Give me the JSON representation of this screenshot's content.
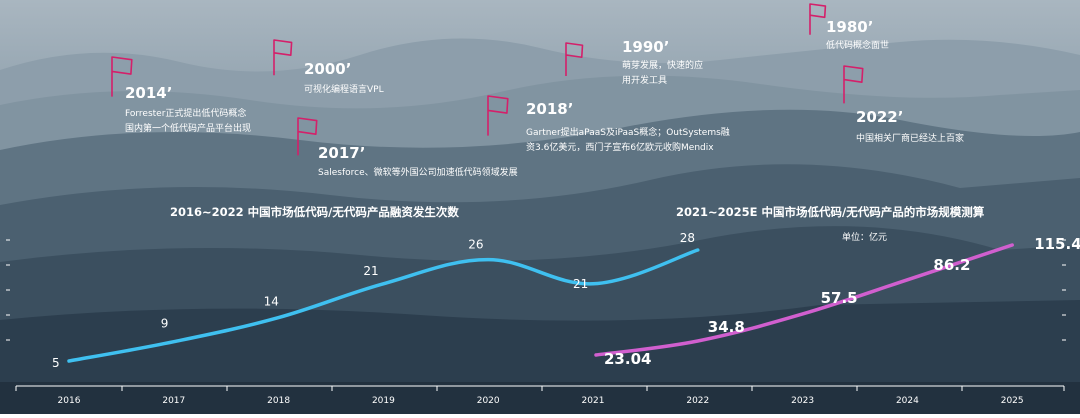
{
  "milestones": [
    {
      "year": "2014’",
      "lines": [
        "Forrester正式提出低代码概念",
        "国内第一个低代码产品平台出现"
      ]
    },
    {
      "year": "2000’",
      "lines": [
        "可视化编程语言VPL"
      ]
    },
    {
      "year": "2017’",
      "lines": [
        "Salesforce、微软等外国公司加速低代码领域发展"
      ]
    },
    {
      "year": "2018’",
      "lines": [
        "Gartner提出aPaaS及iPaaS概念；OutSystems融",
        "资3.6亿美元，西门子宣布6亿欧元收购Mendix"
      ]
    },
    {
      "year": "1990’",
      "lines": [
        "萌芽发展，快速的应",
        "用开发工具"
      ]
    },
    {
      "year": "1980’",
      "lines": [
        "低代码概念面世"
      ]
    },
    {
      "year": "2022’",
      "lines": [
        "中国相关厂商已经达上百家"
      ]
    }
  ],
  "colors": {
    "flag": "#d4206a",
    "series_financing": "#3fc0f0",
    "series_market": "#d15fcf",
    "axis": "#ffffff"
  },
  "chart_data": [
    {
      "type": "line",
      "title": "2016~2022 中国市场低代码/无代码产品融资发生次数",
      "x": [
        "2016",
        "2017",
        "2018",
        "2019",
        "2020",
        "2021",
        "2022"
      ],
      "values": [
        5,
        9,
        14,
        21,
        26,
        21,
        28
      ],
      "xlabel": "",
      "ylabel": ""
    },
    {
      "type": "line",
      "title": "2021~2025E 中国市场低代码/无代码产品的市场规模测算",
      "subtitle": "单位：亿元",
      "x": [
        "2021",
        "2022",
        "2023",
        "2024",
        "2025"
      ],
      "values": [
        23.04,
        34.8,
        57.5,
        86.2,
        115.4
      ],
      "xlabel": "",
      "ylabel": ""
    }
  ],
  "x_axis_ticks": [
    "2016",
    "2017",
    "2018",
    "2019",
    "2020",
    "2021",
    "2022",
    "2023",
    "2024",
    "2025"
  ]
}
